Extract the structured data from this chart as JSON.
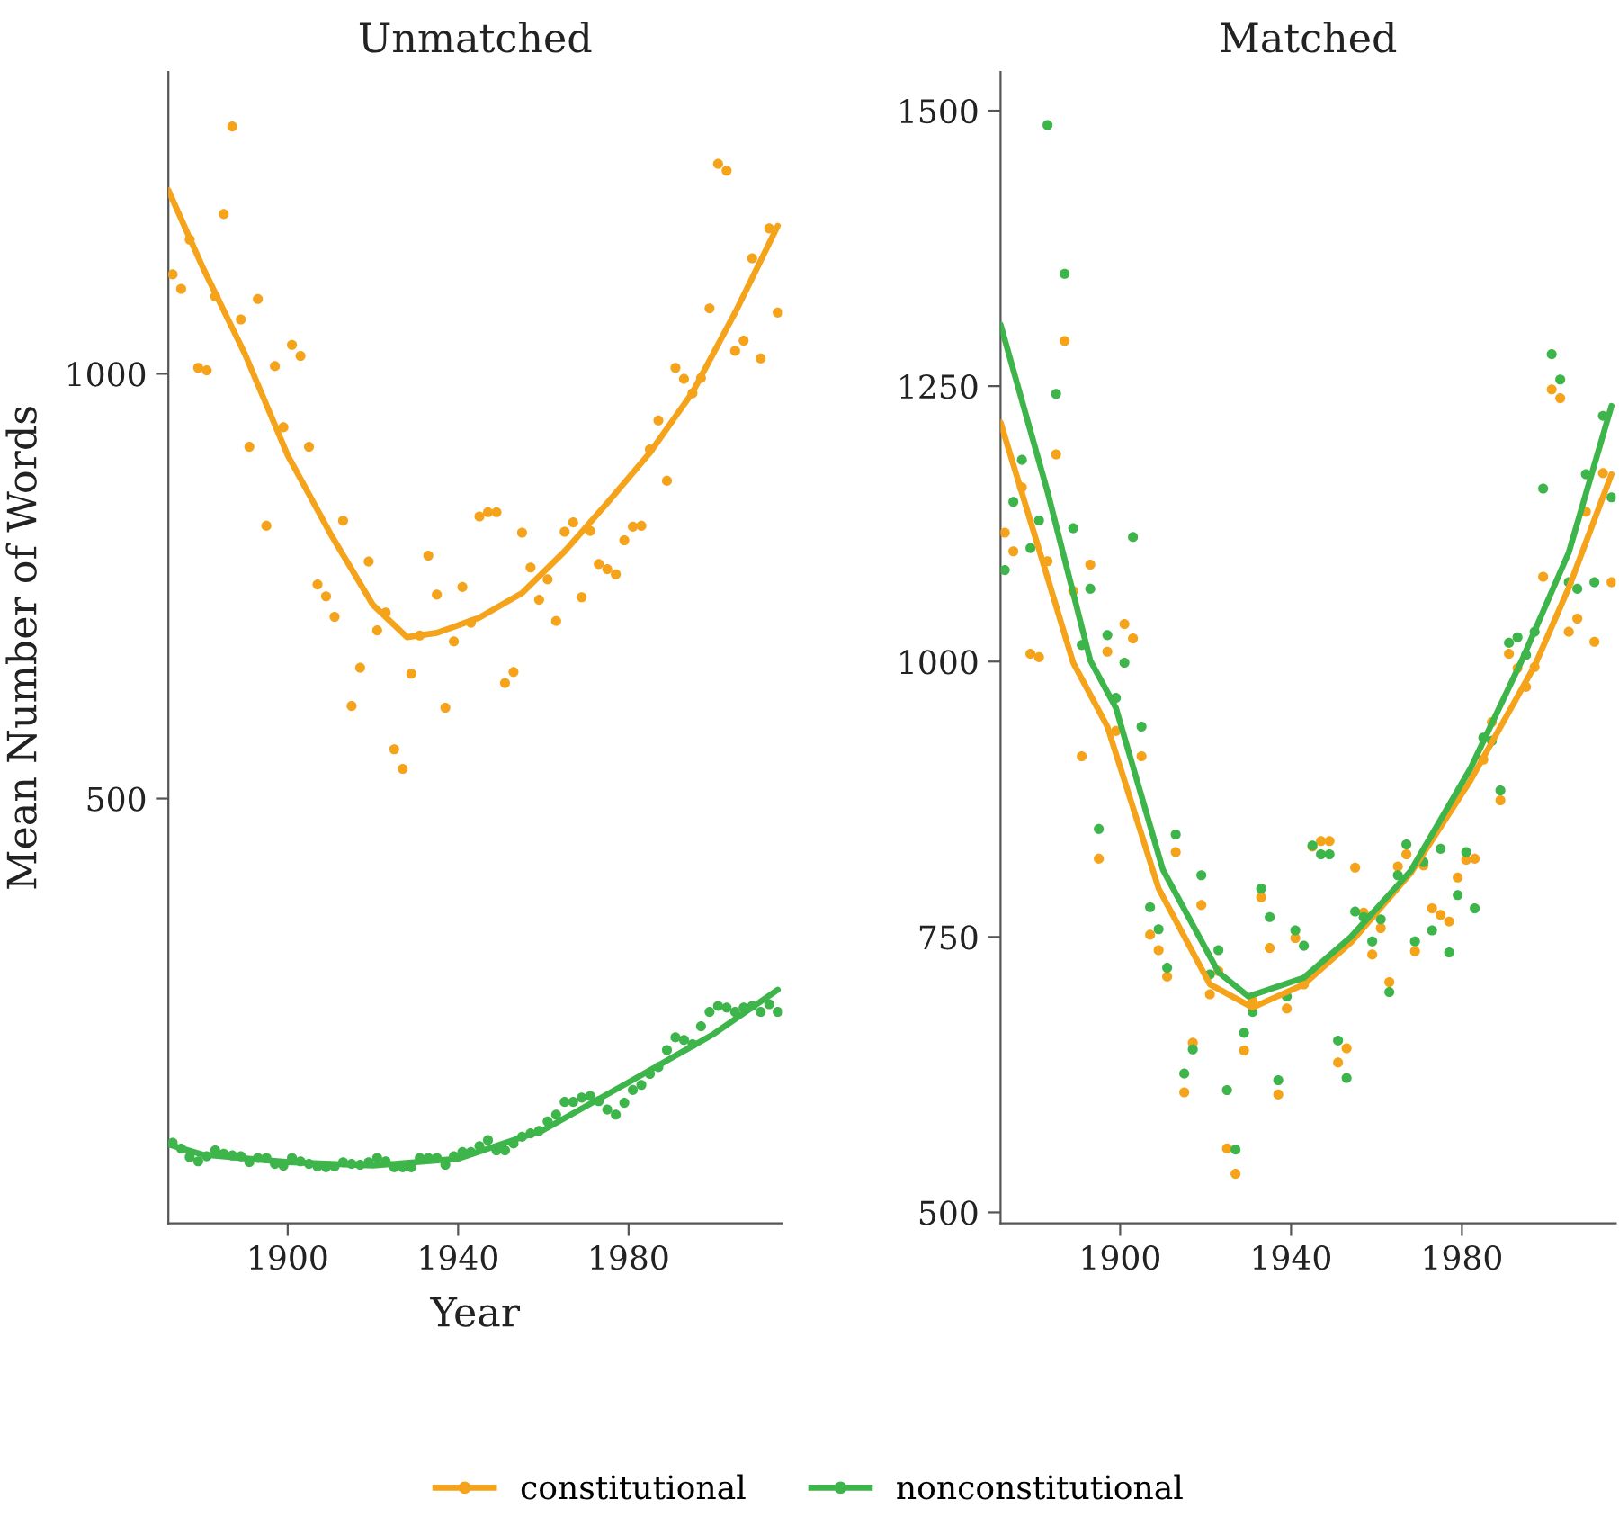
{
  "chart_data": [
    {
      "type": "scatter",
      "title": "Unmatched",
      "xlabel": "Year",
      "ylabel": "Mean Number of Words",
      "legend": "bottom",
      "xlim": [
        1872,
        2016
      ],
      "ylim": [
        0,
        1355
      ],
      "xticks": [
        1900,
        1940,
        1980
      ],
      "yticks": [
        500,
        1000
      ],
      "grid": false,
      "x": [
        1873,
        1875,
        1877,
        1879,
        1881,
        1883,
        1885,
        1887,
        1889,
        1891,
        1893,
        1895,
        1897,
        1899,
        1901,
        1903,
        1905,
        1907,
        1909,
        1911,
        1913,
        1915,
        1917,
        1919,
        1921,
        1923,
        1925,
        1927,
        1929,
        1931,
        1933,
        1935,
        1937,
        1939,
        1941,
        1943,
        1945,
        1947,
        1949,
        1951,
        1953,
        1955,
        1957,
        1959,
        1961,
        1963,
        1965,
        1967,
        1969,
        1971,
        1973,
        1975,
        1977,
        1979,
        1981,
        1983,
        1985,
        1987,
        1989,
        1991,
        1993,
        1995,
        1997,
        1999,
        2001,
        2003,
        2005,
        2007,
        2009,
        2011,
        2013,
        2015
      ],
      "series": [
        {
          "name": "constitutional",
          "marker": "circle",
          "color": "#f5a31a",
          "values": [
            1117,
            1100,
            1158,
            1007,
            1004,
            1091,
            1188,
            1291,
            1064,
            914,
            1088,
            821,
            1009,
            937,
            1034,
            1021,
            914,
            752,
            738,
            714,
            827,
            609,
            654,
            779,
            698,
            719,
            558,
            535,
            647,
            692,
            786,
            740,
            607,
            685,
            749,
            707,
            832,
            837,
            837,
            636,
            649,
            813,
            772,
            734,
            758,
            709,
            814,
            825,
            737,
            815,
            776,
            770,
            764,
            804,
            820,
            821,
            911,
            945,
            874,
            1007,
            994,
            977,
            995,
            1077,
            1247,
            1239,
            1027,
            1039,
            1136,
            1018,
            1171,
            1072
          ]
        },
        {
          "name": "nonconstitutional",
          "marker": "circle",
          "color": "#3db54a",
          "values": [
            95,
            88,
            78,
            73,
            79,
            86,
            82,
            80,
            79,
            72,
            77,
            77,
            70,
            68,
            77,
            73,
            70,
            67,
            66,
            67,
            72,
            70,
            69,
            72,
            77,
            73,
            66,
            66,
            66,
            77,
            77,
            77,
            69,
            79,
            84,
            84,
            91,
            98,
            86,
            86,
            94,
            102,
            106,
            109,
            120,
            128,
            143,
            143,
            148,
            150,
            144,
            134,
            128,
            142,
            157,
            163,
            176,
            184,
            204,
            219,
            216,
            211,
            232,
            249,
            256,
            254,
            249,
            254,
            256,
            249,
            258,
            249
          ]
        },
        {
          "type": "line",
          "color": "#f5a31a",
          "line_style": "solid",
          "x": [
            1872,
            1880,
            1890,
            1900,
            1910,
            1920,
            1928,
            1935,
            1945,
            1955,
            1965,
            1975,
            1985,
            1995,
            2005,
            2015
          ],
          "values": [
            1216,
            1126,
            1023,
            904,
            812,
            728,
            690,
            695,
            713,
            742,
            791,
            848,
            907,
            978,
            1072,
            1174
          ]
        },
        {
          "type": "line",
          "color": "#3db54a",
          "line_style": "solid",
          "x": [
            1872,
            1880,
            1900,
            1920,
            1940,
            1960,
            1980,
            2000,
            2015
          ],
          "values": [
            93,
            81,
            72,
            68,
            76,
            110,
            166,
            223,
            275
          ]
        }
      ]
    },
    {
      "type": "scatter",
      "title": "Matched",
      "xlim": [
        1872,
        2016
      ],
      "ylim": [
        490,
        1535
      ],
      "xticks": [
        1900,
        1940,
        1980
      ],
      "yticks": [
        500,
        750,
        1000,
        1250,
        1500
      ],
      "grid": false,
      "x": [
        1873,
        1875,
        1877,
        1879,
        1881,
        1883,
        1885,
        1887,
        1889,
        1891,
        1893,
        1895,
        1897,
        1899,
        1901,
        1903,
        1905,
        1907,
        1909,
        1911,
        1913,
        1915,
        1917,
        1919,
        1921,
        1923,
        1925,
        1927,
        1929,
        1931,
        1933,
        1935,
        1937,
        1939,
        1941,
        1943,
        1945,
        1947,
        1949,
        1951,
        1953,
        1955,
        1957,
        1959,
        1961,
        1963,
        1965,
        1967,
        1969,
        1971,
        1973,
        1975,
        1977,
        1979,
        1981,
        1983,
        1985,
        1987,
        1989,
        1991,
        1993,
        1995,
        1997,
        1999,
        2001,
        2003,
        2005,
        2007,
        2009,
        2011,
        2013,
        2015
      ],
      "series": [
        {
          "marker": "circle",
          "color": "#f5a31a",
          "values": [
            1117,
            1100,
            1158,
            1007,
            1004,
            1091,
            1188,
            1291,
            1064,
            914,
            1088,
            821,
            1009,
            937,
            1034,
            1021,
            914,
            752,
            738,
            714,
            827,
            609,
            654,
            779,
            698,
            719,
            558,
            535,
            647,
            692,
            786,
            740,
            607,
            685,
            749,
            707,
            832,
            837,
            837,
            636,
            649,
            813,
            772,
            734,
            758,
            709,
            814,
            825,
            737,
            815,
            776,
            770,
            764,
            804,
            820,
            821,
            911,
            945,
            874,
            1007,
            994,
            977,
            995,
            1077,
            1247,
            1239,
            1027,
            1039,
            1136,
            1018,
            1171,
            1072
          ]
        },
        {
          "marker": "circle",
          "color": "#3db54a",
          "values": [
            1083,
            1145,
            1183,
            1103,
            1128,
            1487,
            1243,
            1352,
            1121,
            1015,
            1066,
            848,
            1024,
            967,
            999,
            1113,
            941,
            777,
            757,
            722,
            843,
            626,
            648,
            806,
            716,
            738,
            611,
            557,
            663,
            682,
            794,
            768,
            620,
            696,
            756,
            742,
            833,
            825,
            825,
            656,
            622,
            773,
            768,
            746,
            766,
            700,
            806,
            834,
            746,
            818,
            756,
            830,
            736,
            788,
            827,
            776,
            931,
            928,
            883,
            1017,
            1022,
            1006,
            1027,
            1157,
            1279,
            1256,
            1072,
            1066,
            1170,
            1072,
            1223,
            1149
          ]
        },
        {
          "type": "line",
          "color": "#f5a31a",
          "line_style": "solid",
          "x": [
            1872,
            1882,
            1889,
            1897,
            1909,
            1921,
            1931,
            1943,
            1954,
            1968,
            1982,
            1997,
            2005,
            2015
          ],
          "values": [
            1217,
            1089,
            999,
            941,
            794,
            707,
            686,
            707,
            745,
            808,
            892,
            996,
            1067,
            1170
          ]
        },
        {
          "type": "line",
          "color": "#3db54a",
          "line_style": "solid",
          "x": [
            1872,
            1883,
            1893,
            1899,
            1910,
            1923,
            1930,
            1943,
            1954,
            1968,
            1982,
            1994,
            2005,
            2015
          ],
          "values": [
            1306,
            1154,
            1001,
            958,
            811,
            718,
            696,
            713,
            750,
            810,
            903,
            1001,
            1099,
            1232
          ]
        }
      ]
    }
  ]
}
